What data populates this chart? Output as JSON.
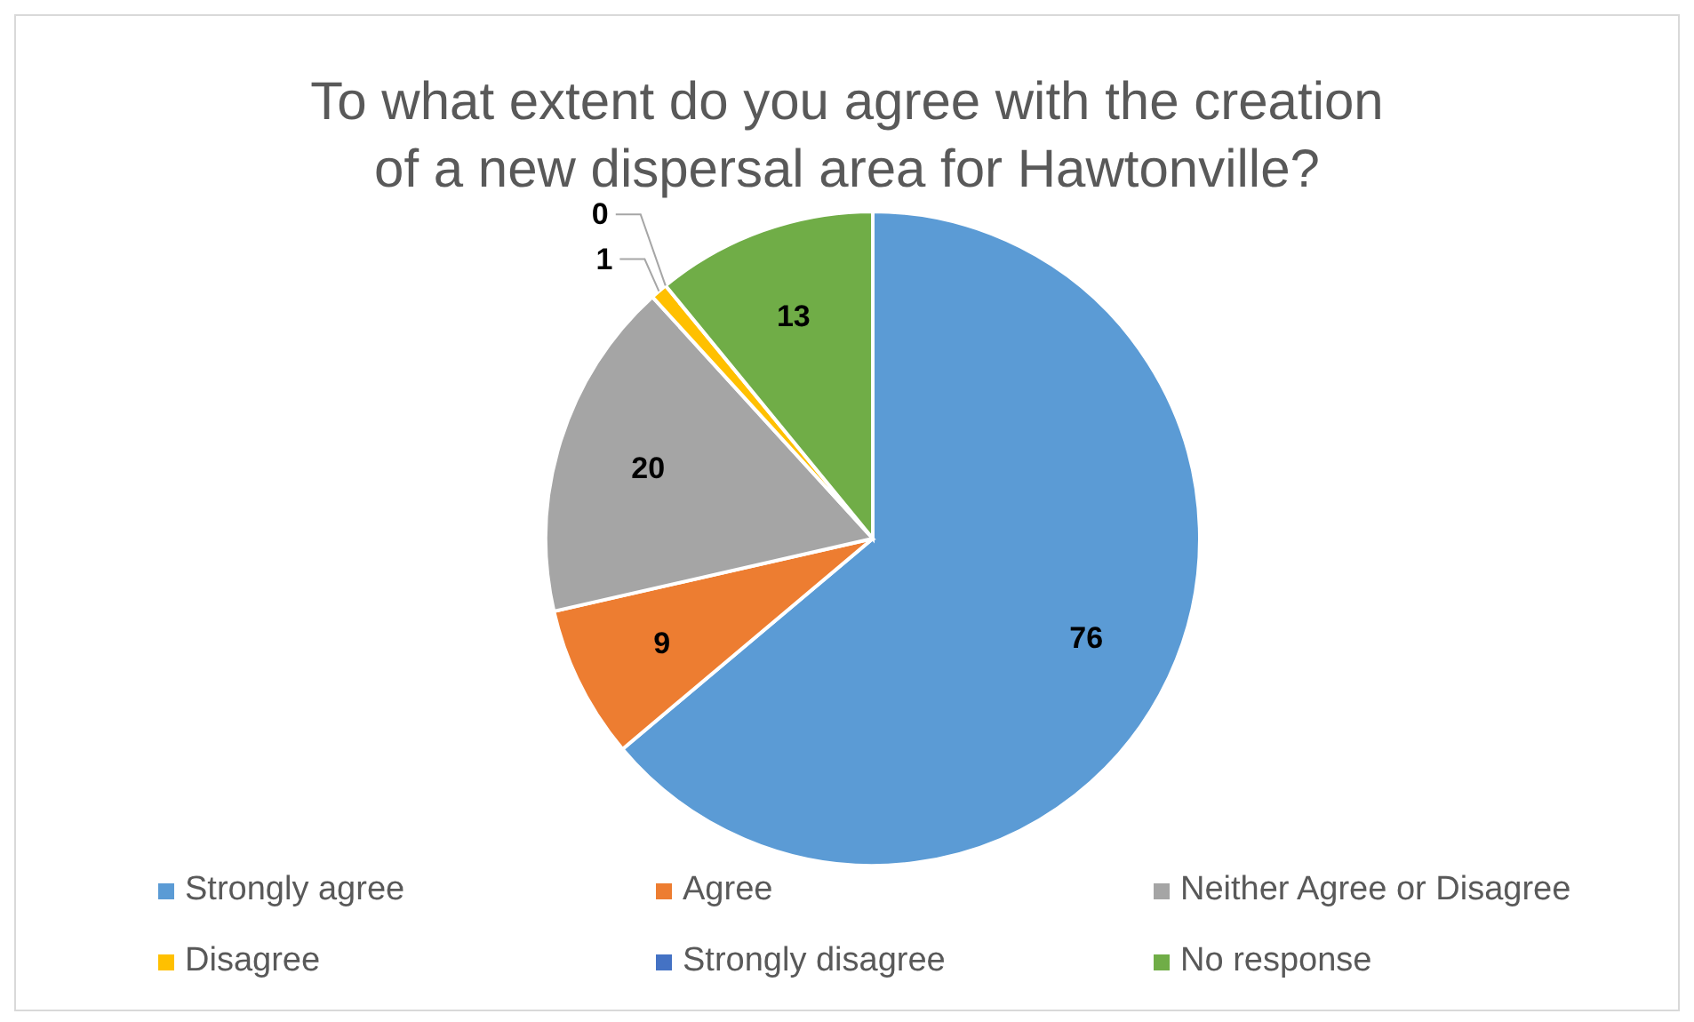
{
  "chart_data": {
    "type": "pie",
    "title": "To what extent do you agree with the creation of a new dispersal area for Hawtonville?",
    "categories": [
      "Strongly agree",
      "Agree",
      "Neither Agree or Disagree",
      "Disagree",
      "Strongly disagree",
      "No response"
    ],
    "values": [
      76,
      9,
      20,
      1,
      0,
      13
    ],
    "colors": [
      "#5b9bd5",
      "#ed7d31",
      "#a5a5a5",
      "#ffc000",
      "#4472c4",
      "#70ad47"
    ],
    "value_labels": [
      "76",
      "9",
      "20",
      "1",
      "0",
      "13"
    ],
    "legend": "bottom"
  }
}
